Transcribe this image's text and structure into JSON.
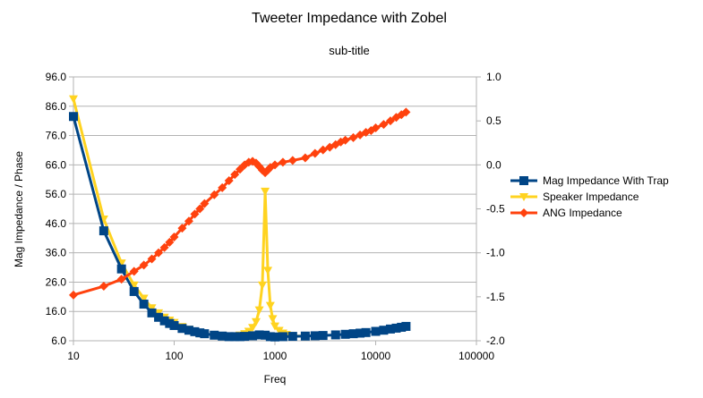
{
  "chart_data": {
    "type": "line",
    "title": "Tweeter Impedance with Zobel",
    "subtitle": "sub-title",
    "xlabel": "Freq",
    "ylabel": "Mag Impedance / Phase",
    "x_scale": "log",
    "xlim": [
      10,
      100000
    ],
    "ylim": [
      6.0,
      96.0
    ],
    "y2lim": [
      -2.0,
      1.0
    ],
    "x_ticks": [
      "10",
      "100",
      "1000",
      "10000",
      "100000"
    ],
    "y_ticks": [
      "6.0",
      "16.0",
      "26.0",
      "36.0",
      "46.0",
      "56.0",
      "66.0",
      "76.0",
      "86.0",
      "96.0"
    ],
    "y2_ticks": [
      "-2.0",
      "-1.5",
      "-1.0",
      "-0.5",
      "0.0",
      "0.5",
      "1.0"
    ],
    "legend_position": "right",
    "grid": "horizontal",
    "series": [
      {
        "name": "Mag Impedance With Trap",
        "color": "#004586",
        "marker": "square",
        "axis": "left",
        "x": [
          10,
          20,
          30,
          40,
          50,
          60,
          70,
          80,
          90,
          100,
          120,
          140,
          160,
          180,
          200,
          250,
          300,
          350,
          400,
          450,
          500,
          600,
          700,
          800,
          900,
          1000,
          1200,
          1500,
          2000,
          2500,
          3000,
          4000,
          5000,
          6000,
          7000,
          8000,
          10000,
          12000,
          14000,
          16000,
          18000,
          20000
        ],
        "values": [
          82.5,
          43.5,
          30.5,
          22.8,
          18.5,
          15.5,
          14.0,
          12.8,
          11.9,
          11.2,
          10.2,
          9.6,
          9.1,
          8.7,
          8.4,
          7.9,
          7.6,
          7.4,
          7.4,
          7.4,
          7.5,
          7.7,
          8.0,
          7.9,
          7.4,
          7.3,
          7.4,
          7.5,
          7.6,
          7.7,
          7.8,
          8.0,
          8.2,
          8.4,
          8.6,
          8.8,
          9.2,
          9.6,
          10.0,
          10.3,
          10.6,
          10.9
        ]
      },
      {
        "name": "Speaker Impedance",
        "color": "#ffd320",
        "marker": "triangle-down",
        "axis": "left",
        "x": [
          10,
          20,
          30,
          40,
          50,
          60,
          70,
          80,
          90,
          100,
          120,
          140,
          160,
          180,
          200,
          250,
          300,
          350,
          400,
          450,
          500,
          550,
          600,
          650,
          700,
          750,
          800,
          850,
          900,
          950,
          1000,
          1100,
          1200,
          1300,
          1500,
          2000
        ],
        "values": [
          88.5,
          47.5,
          32.5,
          25.0,
          20.5,
          17.2,
          15.5,
          14.0,
          13.0,
          12.2,
          10.8,
          9.9,
          9.3,
          8.8,
          8.4,
          7.9,
          7.6,
          7.5,
          7.6,
          7.9,
          8.4,
          9.2,
          10.5,
          12.5,
          16.5,
          25.0,
          57.0,
          30.0,
          18.0,
          13.5,
          11.0,
          9.5,
          8.6,
          8.1,
          7.7,
          7.5
        ]
      },
      {
        "name": "ANG Impedance",
        "color": "#ff420e",
        "marker": "diamond",
        "axis": "right",
        "x": [
          10,
          20,
          30,
          40,
          50,
          60,
          70,
          80,
          90,
          100,
          120,
          140,
          160,
          180,
          200,
          250,
          300,
          350,
          400,
          450,
          500,
          550,
          600,
          650,
          700,
          750,
          800,
          850,
          900,
          1000,
          1200,
          1500,
          2000,
          2500,
          3000,
          3500,
          4000,
          4500,
          5000,
          6000,
          7000,
          8000,
          9000,
          10000,
          12000,
          14000,
          16000,
          18000,
          20000
        ],
        "values": [
          -1.48,
          -1.38,
          -1.3,
          -1.21,
          -1.14,
          -1.07,
          -1.0,
          -0.94,
          -0.88,
          -0.82,
          -0.72,
          -0.64,
          -0.56,
          -0.5,
          -0.44,
          -0.34,
          -0.26,
          -0.18,
          -0.11,
          -0.05,
          0.0,
          0.03,
          0.04,
          0.02,
          -0.02,
          -0.06,
          -0.09,
          -0.06,
          -0.03,
          0.0,
          0.03,
          0.05,
          0.08,
          0.13,
          0.17,
          0.2,
          0.23,
          0.26,
          0.28,
          0.31,
          0.34,
          0.37,
          0.39,
          0.42,
          0.46,
          0.5,
          0.54,
          0.57,
          0.6
        ]
      }
    ]
  }
}
